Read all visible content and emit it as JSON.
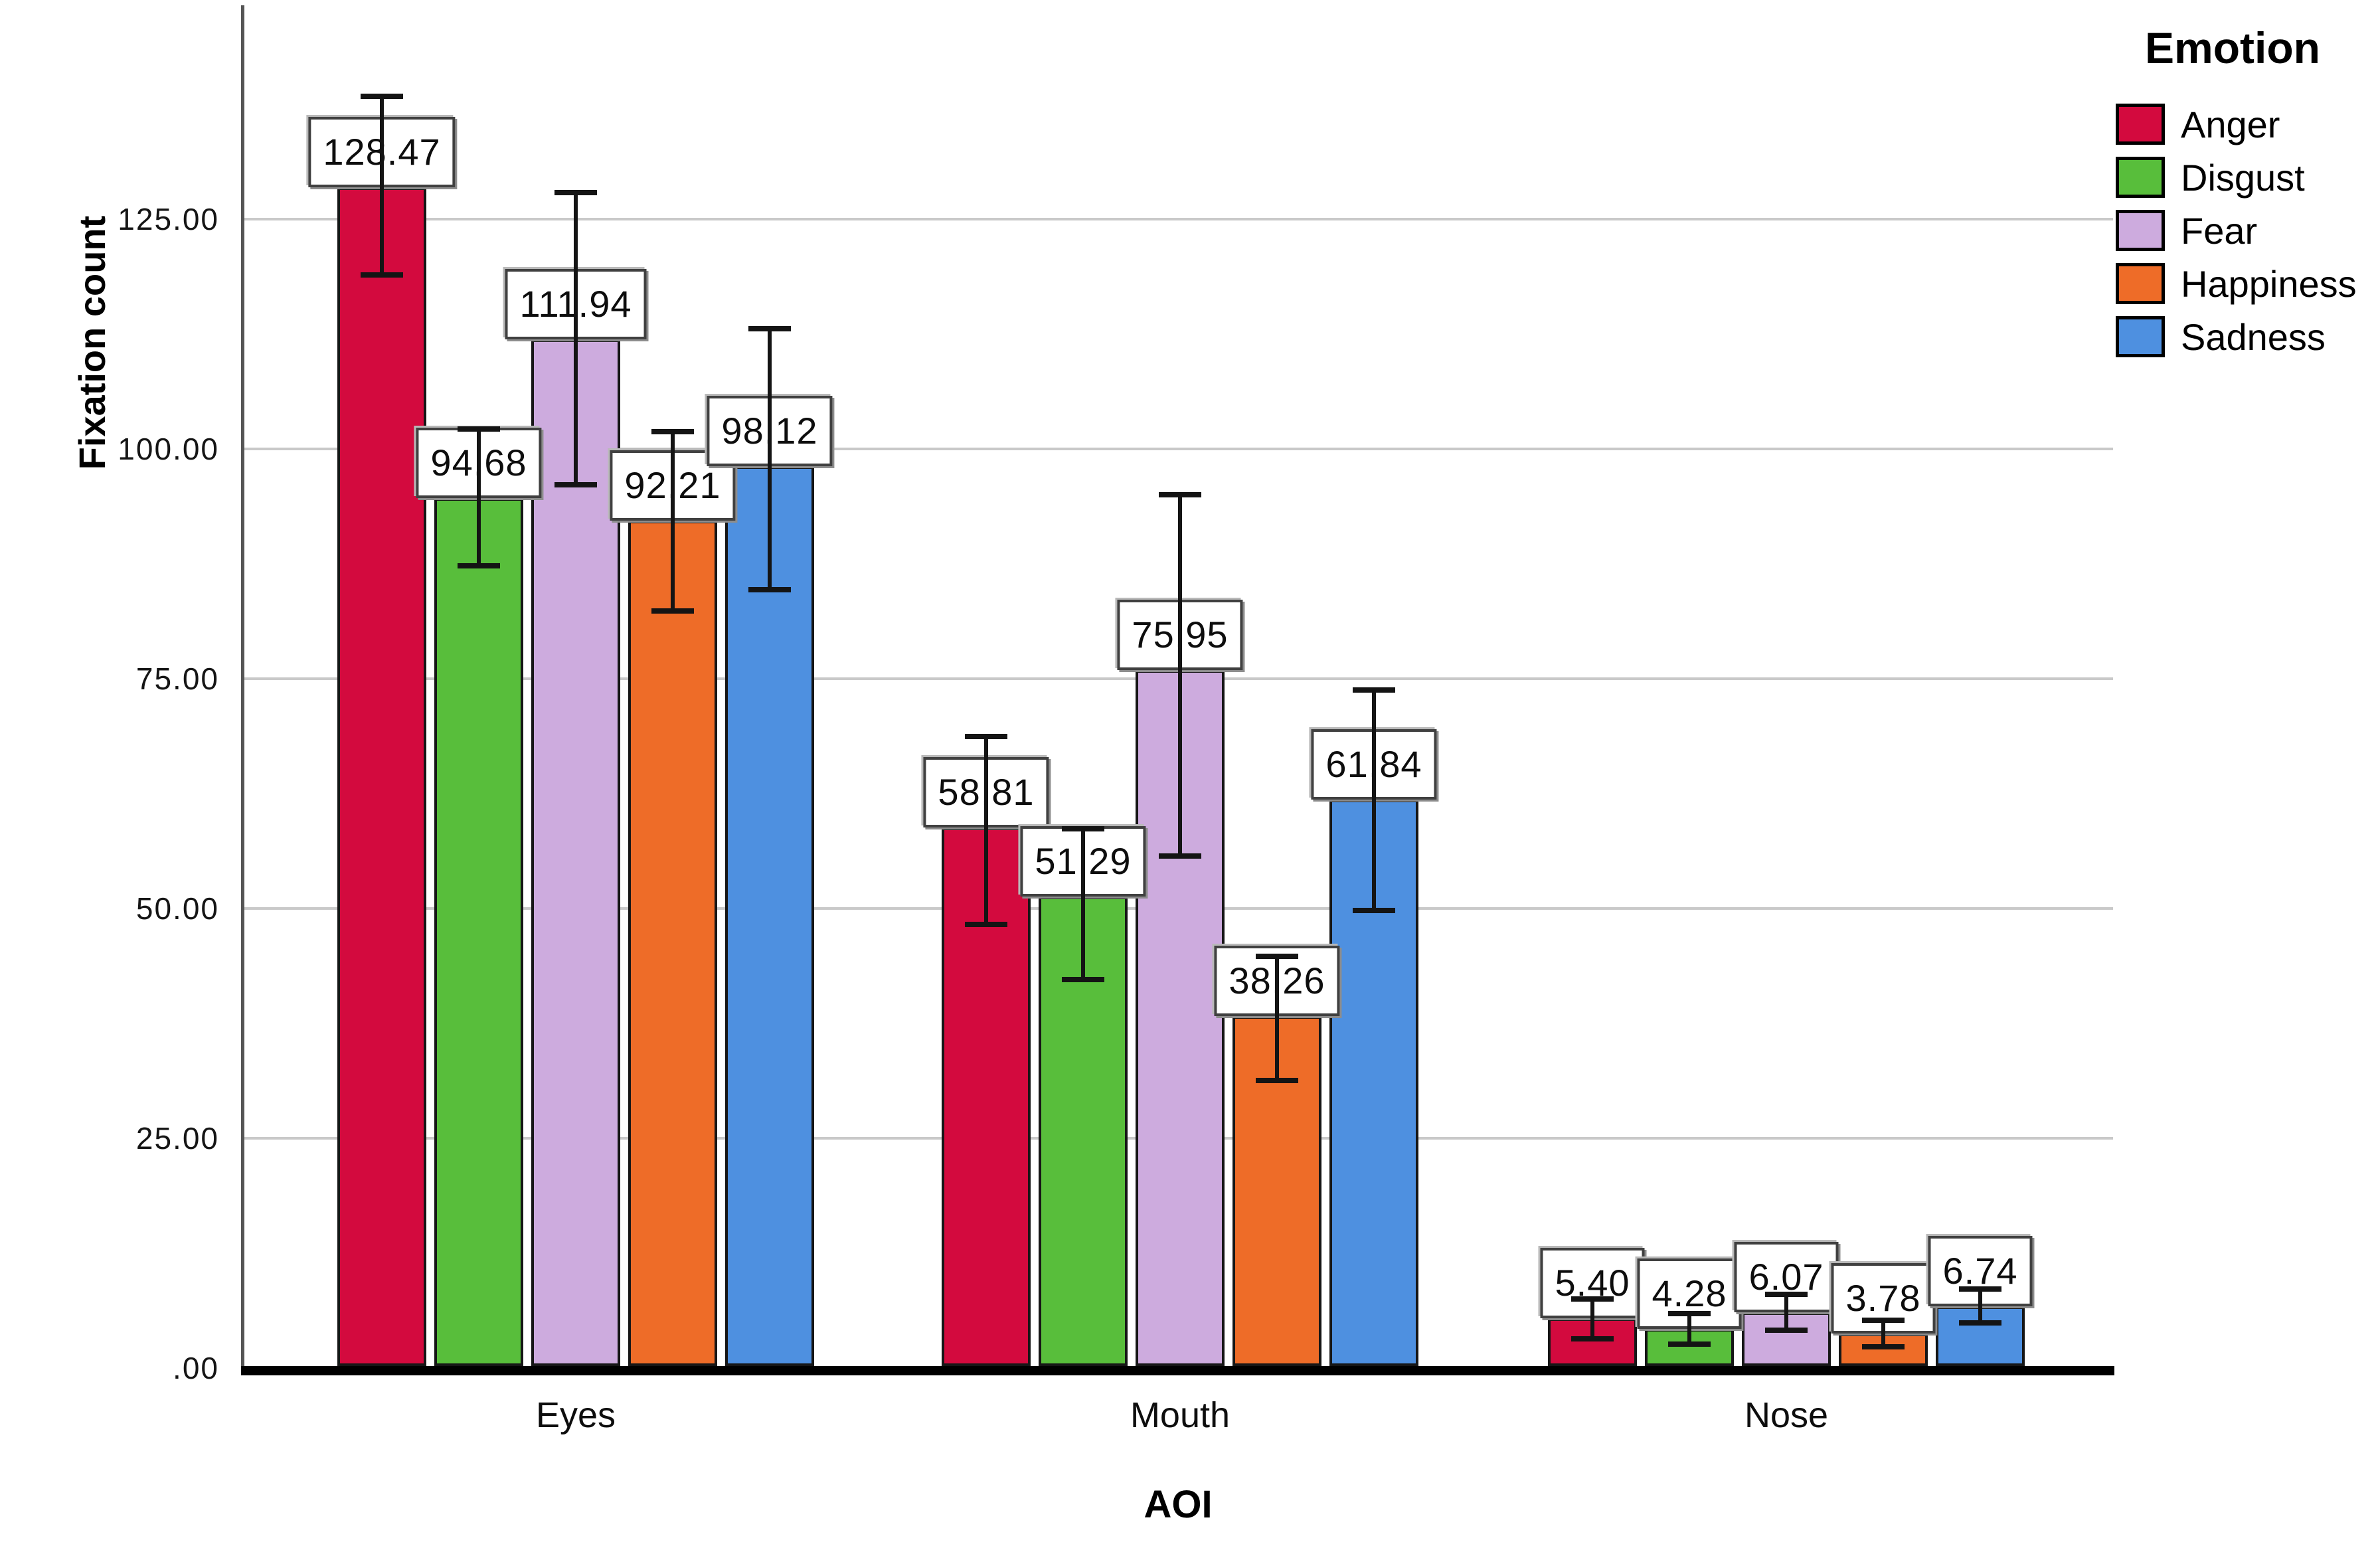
{
  "chart_data": {
    "type": "bar",
    "title": "",
    "categories": [
      "Eyes",
      "Mouth",
      "Nose"
    ],
    "series": [
      {
        "name": "Anger",
        "color": "#d30a3e",
        "values": [
          128.47,
          58.81,
          5.4
        ],
        "labels": [
          "128.47",
          "58.81",
          "5.40"
        ],
        "ci_low": [
          118.9,
          48.3,
          3.2
        ],
        "ci_high": [
          138.4,
          68.7,
          7.5
        ]
      },
      {
        "name": "Disgust",
        "color": "#58be3b",
        "values": [
          94.68,
          51.29,
          4.28
        ],
        "labels": [
          "94.68",
          "51.29",
          "4.28"
        ],
        "ci_low": [
          87.3,
          42.3,
          2.6
        ],
        "ci_high": [
          102.2,
          58.7,
          5.9
        ]
      },
      {
        "name": "Fear",
        "color": "#cdabde",
        "values": [
          111.94,
          75.95,
          6.07
        ],
        "labels": [
          "111.94",
          "75.95",
          "6.07"
        ],
        "ci_low": [
          96.1,
          55.7,
          4.1
        ],
        "ci_high": [
          127.9,
          95.0,
          8.0
        ]
      },
      {
        "name": "Happiness",
        "color": "#ee6c28",
        "values": [
          92.21,
          38.26,
          3.78
        ],
        "labels": [
          "92.21",
          "38.26",
          "3.78"
        ],
        "ci_low": [
          82.4,
          31.3,
          2.3
        ],
        "ci_high": [
          101.9,
          44.8,
          5.2
        ]
      },
      {
        "name": "Sadness",
        "color": "#4e90e0",
        "values": [
          98.12,
          61.84,
          6.74
        ],
        "labels": [
          "98.12",
          "61.84",
          "6.74"
        ],
        "ci_low": [
          84.7,
          49.8,
          4.9
        ],
        "ci_high": [
          113.1,
          73.8,
          8.6
        ]
      }
    ],
    "x_axis": {
      "title": "AOI"
    },
    "y_axis": {
      "title": "Fixation count",
      "ticks": [
        {
          "value": 0,
          "label": ".00"
        },
        {
          "value": 25,
          "label": "25.00"
        },
        {
          "value": 50,
          "label": "50.00"
        },
        {
          "value": 75,
          "label": "75.00"
        },
        {
          "value": 100,
          "label": "100.00"
        },
        {
          "value": 125,
          "label": "125.00"
        }
      ]
    },
    "ylim": [
      0,
      148
    ],
    "grid": "horizontal",
    "error_bars": "95% CI whiskers, black, drawn over value-label boxes",
    "legend": {
      "title": "Emotion",
      "position": "top-right"
    },
    "colors": {
      "gridline": "#c9c9c9",
      "y_axis_line": "#555555",
      "baseline": "#000000",
      "bar_border": "#161616",
      "label_box_border": "#404040",
      "label_box_fill": "#ffffff",
      "error_bar": "#141414"
    }
  }
}
